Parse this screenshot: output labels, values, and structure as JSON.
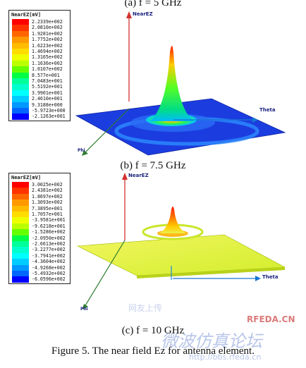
{
  "captions": {
    "a": "(a) f = 5 GHz",
    "b": "(b) f = 7.5 GHz",
    "c": "(c) f = 10 GHz"
  },
  "figure_caption": "Figure 5.    The near field Ez for antenna element.",
  "axes": {
    "z": "NearEZ",
    "theta": "Theta",
    "phi": "Phi"
  },
  "plots": [
    {
      "legend_title": "NearEZ[mV]",
      "values": [
        "2.2339e+002",
        "2.0810e+002",
        "1.9281e+002",
        "1.7752e+002",
        "1.6223e+002",
        "1.4694e+002",
        "1.3165e+002",
        "1.1636e+002",
        "1.0107e+002",
        "8.577e+001",
        "7.0483e+001",
        "5.5192e+001",
        "3.9901e+001",
        "2.4610e+001",
        "9.3188e+000",
        "-5.9723e+000",
        "-2.1263e+001"
      ],
      "colors": [
        "#ff0000",
        "#ff3300",
        "#ff6600",
        "#ff9900",
        "#ffbb00",
        "#ffdd00",
        "#eeff00",
        "#bbff00",
        "#66ff00",
        "#00ff44",
        "#00ff99",
        "#00ffcc",
        "#00ffff",
        "#00ccff",
        "#0099ff",
        "#0066ff",
        "#0000ff"
      ]
    },
    {
      "legend_title": "NearEZ[mV]",
      "values": [
        "3.0025e+002",
        "2.4381e+002",
        "1.8697e+002",
        "1.3093e+002",
        "7.3895e+001",
        "1.7057e+001",
        "-3.9581e+001",
        "-9.6218e+001",
        "-1.5286e+002",
        "-2.0950e+002",
        "-2.6613e+002",
        "-3.2277e+002",
        "-3.7941e+002",
        "-4.3604e+002",
        "-4.9268e+002",
        "-5.4932e+002",
        "-6.0596e+002"
      ],
      "colors": [
        "#ff0000",
        "#ff3300",
        "#ff6600",
        "#ff9900",
        "#ffbb00",
        "#ffdd00",
        "#eeff00",
        "#bbff00",
        "#66ff00",
        "#00ff44",
        "#00ff99",
        "#00ffcc",
        "#00ffff",
        "#00ccff",
        "#0099ff",
        "#0066ff",
        "#0000ff"
      ]
    }
  ],
  "watermark": {
    "cn": "微波仿真论坛",
    "url": "http://bbs.rfeda.cn",
    "brand": "RFEDA.CN"
  }
}
